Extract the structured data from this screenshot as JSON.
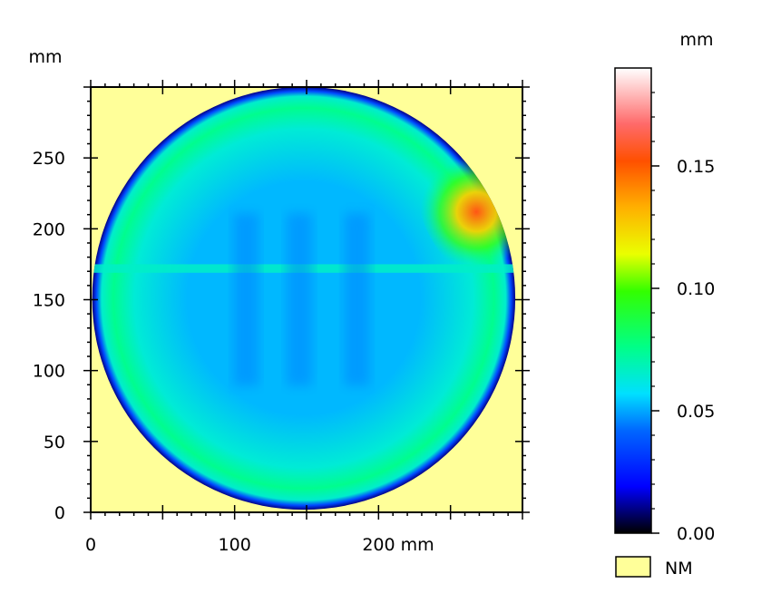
{
  "chart_data": {
    "type": "heatmap",
    "title": "",
    "xunit": "mm",
    "yunit": "mm",
    "xlim": [
      0,
      300
    ],
    "ylim": [
      0,
      300
    ],
    "xticks": [
      {
        "value": 0,
        "label": "0"
      },
      {
        "value": 100,
        "label": "100"
      },
      {
        "value": 200,
        "label": "200 mm"
      }
    ],
    "yticks": [
      {
        "value": 0,
        "label": "0"
      },
      {
        "value": 50,
        "label": "50"
      },
      {
        "value": 100,
        "label": "100"
      },
      {
        "value": 150,
        "label": "150"
      },
      {
        "value": 200,
        "label": "200"
      },
      {
        "value": 250,
        "label": "250"
      }
    ],
    "wafer": {
      "center_mm": [
        148,
        151
      ],
      "radius_mm": 147,
      "edge_value": 0.01,
      "ring_value": 0.075,
      "interior_value": 0.052,
      "seam_band": {
        "y_mm": [
          169,
          175
        ],
        "value": 0.066
      },
      "hotspot": {
        "center_mm": [
          268,
          212
        ],
        "peak_value": 0.155
      },
      "scan_columns_mm": [
        108,
        145,
        185
      ]
    },
    "colorbar": {
      "unit": "mm",
      "range": [
        0,
        0.19
      ],
      "ticks": [
        {
          "value": 0,
          "label": "0.00"
        },
        {
          "value": 0.05,
          "label": "0.05"
        },
        {
          "value": 0.1,
          "label": "0.10"
        },
        {
          "value": 0.15,
          "label": "0.15"
        }
      ],
      "stops": [
        [
          0.0,
          "#000000"
        ],
        [
          0.1,
          "#0000ff"
        ],
        [
          0.22,
          "#0066ff"
        ],
        [
          0.3,
          "#00e0ff"
        ],
        [
          0.4,
          "#00ff88"
        ],
        [
          0.52,
          "#33ff00"
        ],
        [
          0.6,
          "#eaff00"
        ],
        [
          0.7,
          "#ffb000"
        ],
        [
          0.8,
          "#ff5000"
        ],
        [
          0.88,
          "#ff6a6a"
        ],
        [
          1.0,
          "#ffffff"
        ]
      ]
    },
    "legend": {
      "label": "NM",
      "color": "#ffff99"
    },
    "colors": {
      "not_measured": "#ffff99",
      "frame": "#000000"
    }
  }
}
